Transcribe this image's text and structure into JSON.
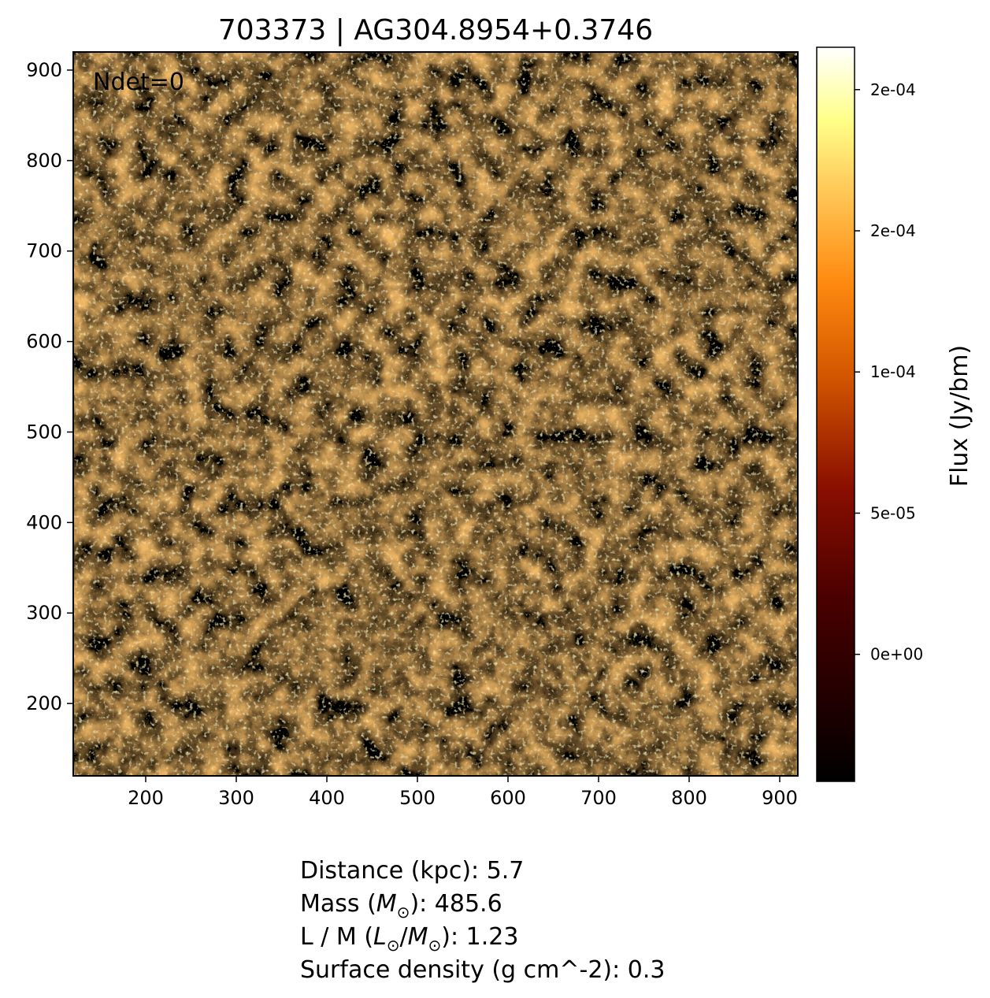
{
  "chart_data": {
    "type": "heatmap",
    "title": "703373 | AG304.8954+0.3746",
    "annotation": "Ndet=0",
    "xlim": [
      120,
      920
    ],
    "ylim": [
      120,
      920
    ],
    "x_ticks": [
      "200",
      "300",
      "400",
      "500",
      "600",
      "700",
      "800",
      "900"
    ],
    "y_ticks": [
      "200",
      "300",
      "400",
      "500",
      "600",
      "700",
      "800",
      "900"
    ],
    "x_tick_values": [
      200,
      300,
      400,
      500,
      600,
      700,
      800,
      900
    ],
    "y_tick_values": [
      200,
      300,
      400,
      500,
      600,
      700,
      800,
      900
    ],
    "map_center": [
      520,
      520
    ],
    "map_radius": 400,
    "colormap": "afmhot",
    "colorbar": {
      "label": "Flux (Jy/bm)",
      "range": [
        -4.5e-05,
        0.000215
      ],
      "tick_labels": [
        "0e+00",
        "5e-05",
        "1e-04",
        "2e-04",
        "2e-04"
      ],
      "tick_values": [
        0,
        5e-05,
        0.0001,
        0.00015,
        0.0002
      ]
    },
    "grid": false
  },
  "info": {
    "distance_prefix": "Distance (kpc): ",
    "distance_value": "5.7",
    "mass_prefix": "Mass (",
    "mass_symbol": "M",
    "mass_sub": "⊙",
    "mass_suffix": "): ",
    "mass_value": "485.6",
    "lm_prefix": "L / M (",
    "lm_l": "L",
    "lm_l_sub": "⊙",
    "lm_sep": "/",
    "lm_m": "M",
    "lm_m_sub": "⊙",
    "lm_suffix": "): ",
    "lm_value": "1.23",
    "sd_prefix": "Surface density (g cm^-2): ",
    "sd_value": "0.3"
  }
}
